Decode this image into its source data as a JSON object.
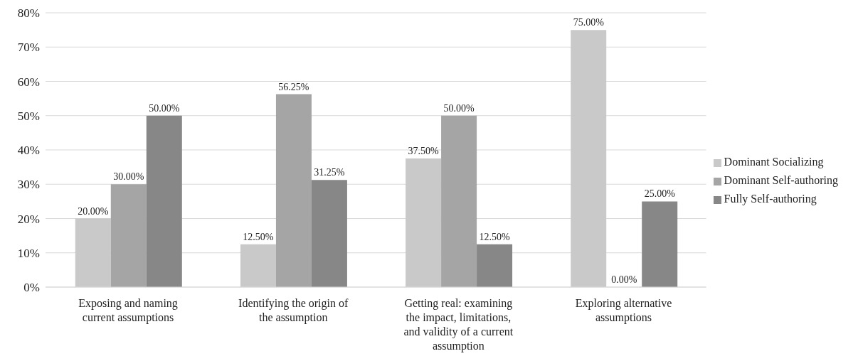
{
  "chart_data": {
    "type": "bar",
    "categories": [
      "Exposing and naming current assumptions",
      "Identifying the origin of the assumption",
      "Getting real: examining the impact, limitations, and validity of a current assumption",
      "Exploring alternative assumptions"
    ],
    "series": [
      {
        "name": "Dominant Socializing",
        "color": "#c9c9c9",
        "values": [
          20,
          12.5,
          37.5,
          75
        ],
        "value_labels": [
          "20.00%",
          "12.50%",
          "37.50%",
          "75.00%"
        ]
      },
      {
        "name": "Dominant Self-authoring",
        "color": "#a5a5a5",
        "values": [
          30,
          56.25,
          50,
          0
        ],
        "value_labels": [
          "30.00%",
          "56.25%",
          "50.00%",
          "0.00%"
        ]
      },
      {
        "name": "Fully Self-authoring",
        "color": "#878787",
        "values": [
          50,
          31.25,
          12.5,
          25
        ],
        "value_labels": [
          "50.00%",
          "31.25%",
          "12.50%",
          "25.00%"
        ]
      }
    ],
    "ylim": [
      0,
      80
    ],
    "yticks": [
      {
        "value": 0,
        "label": "0%"
      },
      {
        "value": 10,
        "label": "10%"
      },
      {
        "value": 20,
        "label": "20%"
      },
      {
        "value": 30,
        "label": "30%"
      },
      {
        "value": 40,
        "label": "40%"
      },
      {
        "value": 50,
        "label": "50%"
      },
      {
        "value": 60,
        "label": "60%"
      },
      {
        "value": 70,
        "label": "70%"
      },
      {
        "value": 80,
        "label": "80%"
      }
    ],
    "grid": "y",
    "legend": "right"
  }
}
